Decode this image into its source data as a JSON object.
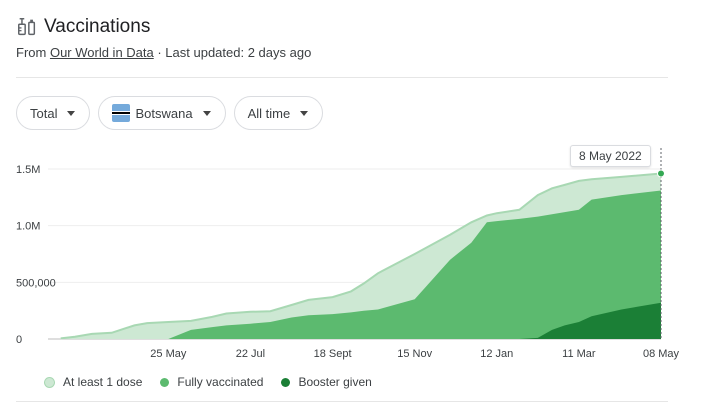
{
  "header": {
    "title": "Vaccinations",
    "source_prefix": "From ",
    "source_link": "Our World in Data",
    "source_suffix": " · Last updated: 2 days ago"
  },
  "filters": {
    "metric": "Total",
    "country": "Botswana",
    "range": "All time"
  },
  "tooltip": {
    "date": "8 May 2022"
  },
  "colors": {
    "first_dose": "#cde8d3",
    "fully": "#5cba6f",
    "booster": "#1b7f36",
    "first_dose_line": "#a8d8b3"
  },
  "chart_data": {
    "type": "area",
    "x": [
      "2021-03-10",
      "2021-03-20",
      "2021-04-01",
      "2021-04-15",
      "2021-05-01",
      "2021-05-10",
      "2021-05-25",
      "2021-06-10",
      "2021-06-25",
      "2021-07-05",
      "2021-07-22",
      "2021-08-05",
      "2021-08-20",
      "2021-09-01",
      "2021-09-18",
      "2021-10-01",
      "2021-10-10",
      "2021-10-20",
      "2021-11-15",
      "2021-12-10",
      "2021-12-25",
      "2022-01-05",
      "2022-01-12",
      "2022-01-28",
      "2022-02-10",
      "2022-02-20",
      "2022-03-01",
      "2022-03-11",
      "2022-03-20",
      "2022-04-10",
      "2022-05-08"
    ],
    "series": [
      {
        "name": "At least 1 dose",
        "values": [
          5000,
          20000,
          45000,
          55000,
          120000,
          140000,
          150000,
          160000,
          195000,
          225000,
          240000,
          245000,
          300000,
          345000,
          370000,
          420000,
          490000,
          580000,
          750000,
          920000,
          1030000,
          1090000,
          1110000,
          1140000,
          1270000,
          1330000,
          1360000,
          1395000,
          1410000,
          1430000,
          1460000
        ]
      },
      {
        "name": "Fully vaccinated",
        "values": [
          0,
          0,
          0,
          0,
          0,
          0,
          0,
          80000,
          105000,
          120000,
          135000,
          150000,
          190000,
          210000,
          220000,
          235000,
          250000,
          260000,
          350000,
          700000,
          850000,
          1030000,
          1040000,
          1060000,
          1080000,
          1100000,
          1120000,
          1140000,
          1230000,
          1270000,
          1310000
        ]
      },
      {
        "name": "Booster given",
        "values": [
          0,
          0,
          0,
          0,
          0,
          0,
          0,
          0,
          0,
          0,
          0,
          0,
          0,
          0,
          0,
          0,
          0,
          0,
          0,
          0,
          0,
          0,
          0,
          0,
          10000,
          80000,
          120000,
          150000,
          200000,
          260000,
          320000
        ]
      }
    ],
    "x_ticks": [
      {
        "label": "25 May",
        "date": "2021-05-25"
      },
      {
        "label": "22 Jul",
        "date": "2021-07-22"
      },
      {
        "label": "18 Sept",
        "date": "2021-09-18"
      },
      {
        "label": "15 Nov",
        "date": "2021-11-15"
      },
      {
        "label": "12 Jan",
        "date": "2022-01-12"
      },
      {
        "label": "11 Mar",
        "date": "2022-03-11"
      },
      {
        "label": "08 May",
        "date": "2022-05-08"
      }
    ],
    "y_ticks": [
      {
        "label": "0",
        "value": 0
      },
      {
        "label": "500,000",
        "value": 500000
      },
      {
        "label": "1.0M",
        "value": 1000000
      },
      {
        "label": "1.5M",
        "value": 1500000
      }
    ],
    "x_range": [
      "2021-03-01",
      "2022-05-08"
    ],
    "ylim": [
      0,
      1500000
    ],
    "grid": true,
    "legend": "bottom-left"
  },
  "legend": {
    "first_dose": "At least 1 dose",
    "fully": "Fully vaccinated",
    "booster": "Booster given"
  }
}
